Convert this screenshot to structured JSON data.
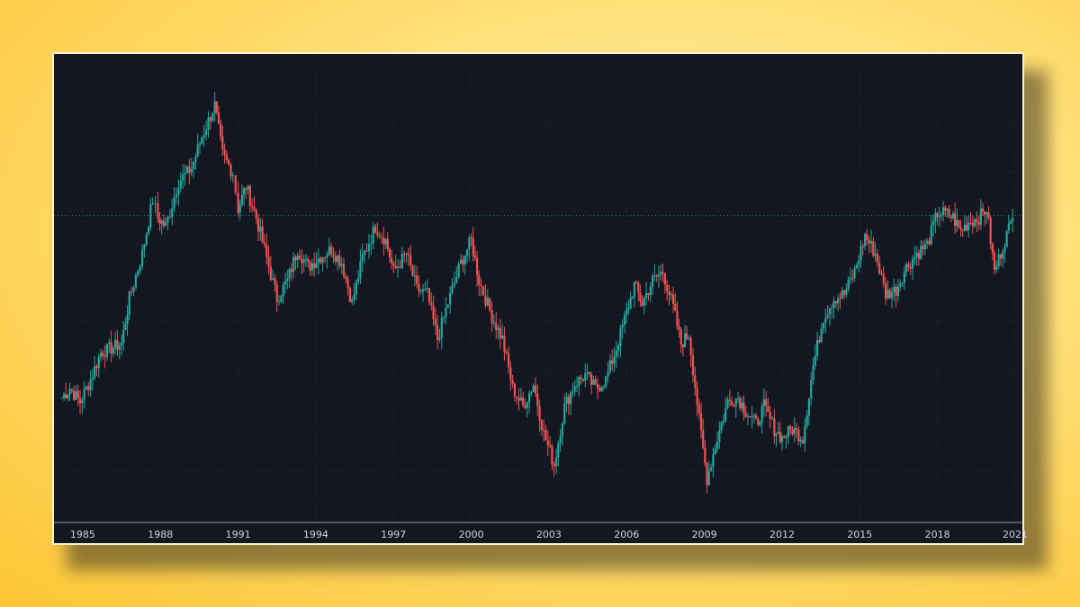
{
  "colors": {
    "background": "#131722",
    "up": "#26a69a",
    "down": "#ef5350",
    "grid": "#1f2636",
    "axis_text": "#d1d4dc",
    "frame_border": "#fbf4d3"
  },
  "chart_data": {
    "type": "candlestick",
    "interval": "monthly",
    "x_range": [
      1984.1,
      2021.0
    ],
    "y_range": [
      0,
      100
    ],
    "y_axis_visible": false,
    "grid": true,
    "current_price_line": true,
    "x_ticks": [
      {
        "year": 1985,
        "label": "1985"
      },
      {
        "year": 1988,
        "label": "1988"
      },
      {
        "year": 1991,
        "label": "1991"
      },
      {
        "year": 1994,
        "label": "1994"
      },
      {
        "year": 1997,
        "label": "1997"
      },
      {
        "year": 2000,
        "label": "2000"
      },
      {
        "year": 2003,
        "label": "2003"
      },
      {
        "year": 2006,
        "label": "2006"
      },
      {
        "year": 2009,
        "label": "2009"
      },
      {
        "year": 2012,
        "label": "2012"
      },
      {
        "year": 2015,
        "label": "2015"
      },
      {
        "year": 2018,
        "label": "2018"
      },
      {
        "year": 2021,
        "label": "2021"
      }
    ],
    "close_path": [
      [
        1984.2,
        26.0
      ],
      [
        1984.5,
        28.0
      ],
      [
        1984.9,
        25.0
      ],
      [
        1985.3,
        30.0
      ],
      [
        1985.7,
        36.0
      ],
      [
        1986.5,
        38.0
      ],
      [
        1986.8,
        48.0
      ],
      [
        1987.3,
        58.0
      ],
      [
        1987.7,
        70.0
      ],
      [
        1987.9,
        66.0
      ],
      [
        1988.2,
        64.0
      ],
      [
        1988.7,
        74.0
      ],
      [
        1989.2,
        77.0
      ],
      [
        1989.6,
        84.0
      ],
      [
        1990.1,
        91.0
      ],
      [
        1990.4,
        80.0
      ],
      [
        1990.8,
        76.0
      ],
      [
        1991.0,
        68.0
      ],
      [
        1991.3,
        73.0
      ],
      [
        1991.7,
        66.0
      ],
      [
        1992.1,
        57.0
      ],
      [
        1992.5,
        48.0
      ],
      [
        1992.9,
        52.0
      ],
      [
        1993.3,
        59.0
      ],
      [
        1993.7,
        55.0
      ],
      [
        1994.1,
        57.0
      ],
      [
        1994.6,
        59.0
      ],
      [
        1995.0,
        56.0
      ],
      [
        1995.4,
        47.0
      ],
      [
        1995.8,
        57.0
      ],
      [
        1996.3,
        64.0
      ],
      [
        1996.7,
        61.0
      ],
      [
        1997.0,
        54.0
      ],
      [
        1997.5,
        58.0
      ],
      [
        1997.9,
        50.0
      ],
      [
        1998.3,
        49.0
      ],
      [
        1998.7,
        39.0
      ],
      [
        1999.1,
        47.0
      ],
      [
        1999.6,
        56.0
      ],
      [
        2000.0,
        61.0
      ],
      [
        2000.3,
        52.0
      ],
      [
        2000.8,
        44.0
      ],
      [
        2001.2,
        39.0
      ],
      [
        2001.6,
        28.0
      ],
      [
        2002.0,
        24.0
      ],
      [
        2002.4,
        29.0
      ],
      [
        2002.8,
        18.0
      ],
      [
        2003.2,
        11.0
      ],
      [
        2003.6,
        24.0
      ],
      [
        2004.0,
        29.0
      ],
      [
        2004.4,
        31.0
      ],
      [
        2004.8,
        28.0
      ],
      [
        2005.2,
        30.0
      ],
      [
        2005.6,
        37.0
      ],
      [
        2006.0,
        45.0
      ],
      [
        2006.3,
        51.0
      ],
      [
        2006.6,
        47.0
      ],
      [
        2007.0,
        52.0
      ],
      [
        2007.4,
        54.0
      ],
      [
        2007.8,
        46.0
      ],
      [
        2008.1,
        38.0
      ],
      [
        2008.4,
        40.0
      ],
      [
        2008.8,
        21.0
      ],
      [
        2009.1,
        8.0
      ],
      [
        2009.5,
        17.0
      ],
      [
        2009.9,
        25.0
      ],
      [
        2010.3,
        26.0
      ],
      [
        2010.6,
        23.0
      ],
      [
        2011.0,
        20.0
      ],
      [
        2011.3,
        24.0
      ],
      [
        2011.7,
        19.0
      ],
      [
        2012.0,
        17.0
      ],
      [
        2012.4,
        19.0
      ],
      [
        2012.8,
        17.0
      ],
      [
        2013.2,
        33.0
      ],
      [
        2013.6,
        44.0
      ],
      [
        2014.0,
        48.0
      ],
      [
        2014.4,
        49.0
      ],
      [
        2014.8,
        54.0
      ],
      [
        2015.2,
        62.0
      ],
      [
        2015.6,
        58.0
      ],
      [
        2016.0,
        49.0
      ],
      [
        2016.4,
        50.0
      ],
      [
        2016.8,
        55.0
      ],
      [
        2017.2,
        58.0
      ],
      [
        2017.6,
        60.0
      ],
      [
        2018.0,
        67.0
      ],
      [
        2018.3,
        67.0
      ],
      [
        2018.6,
        66.0
      ],
      [
        2018.9,
        63.0
      ],
      [
        2019.2,
        65.0
      ],
      [
        2019.6,
        66.0
      ],
      [
        2019.9,
        68.0
      ],
      [
        2020.2,
        54.0
      ],
      [
        2020.6,
        61.0
      ],
      [
        2020.9,
        66.0
      ]
    ],
    "last_close": 66.5
  }
}
